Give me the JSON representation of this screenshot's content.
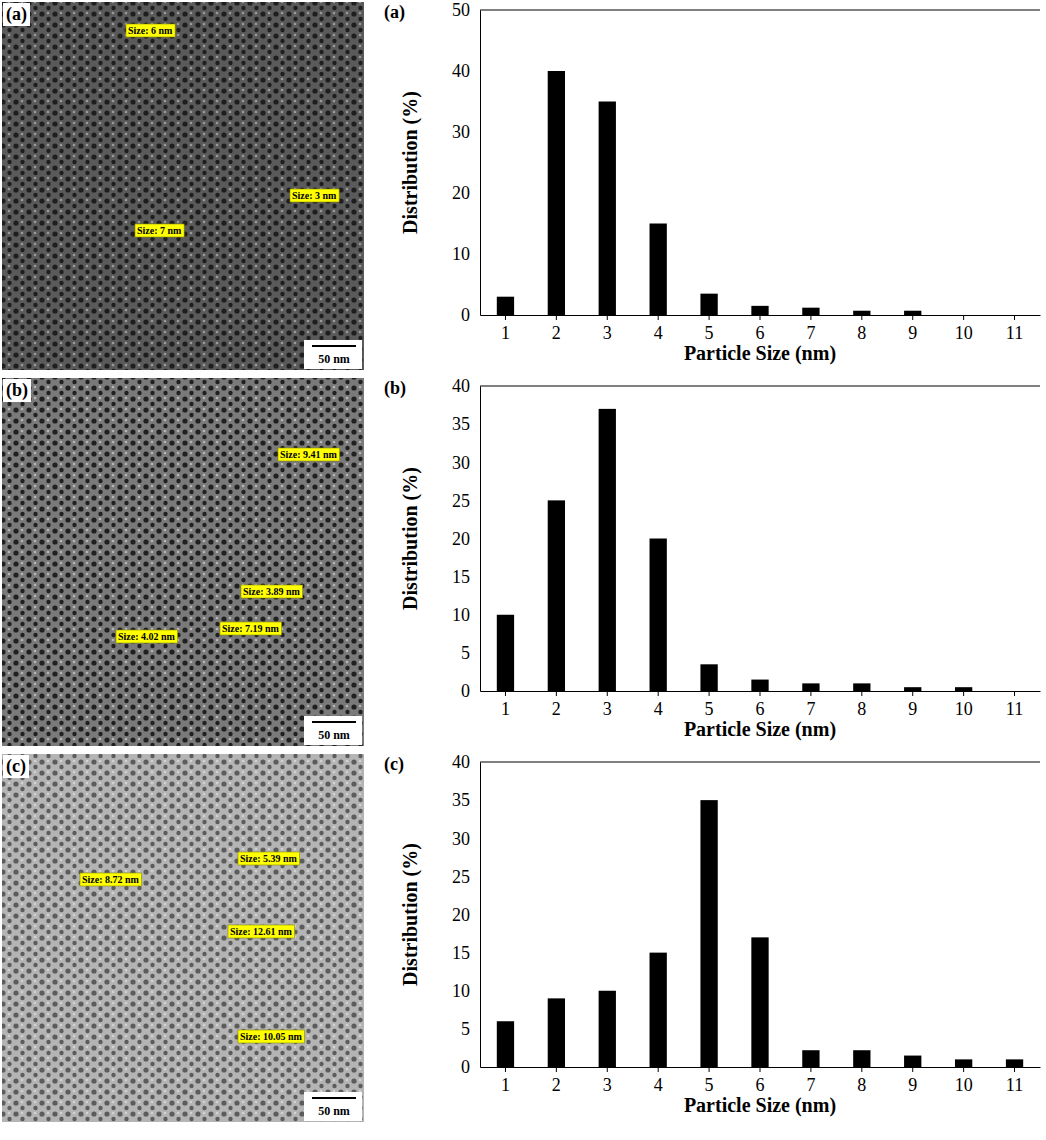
{
  "chart_data": [
    {
      "type": "bar",
      "title": "(a)",
      "xlabel": "Particle Size (nm)",
      "ylabel": "Distribution (%)",
      "categories": [
        "1",
        "2",
        "3",
        "4",
        "5",
        "6",
        "7",
        "8",
        "9",
        "10",
        "11"
      ],
      "values": [
        3,
        40,
        35,
        15,
        3.5,
        1.5,
        1.2,
        0.7,
        0.7,
        0,
        0
      ],
      "color": "#000000",
      "ylim": [
        0,
        50
      ],
      "yticks": [
        0,
        10,
        20,
        30,
        40,
        50
      ],
      "grid": false
    },
    {
      "type": "bar",
      "title": "(b)",
      "xlabel": "Particle Size (nm)",
      "ylabel": "Distribution (%)",
      "categories": [
        "1",
        "2",
        "3",
        "4",
        "5",
        "6",
        "7",
        "8",
        "9",
        "10",
        "11"
      ],
      "values": [
        10,
        25,
        37,
        20,
        3.5,
        1.5,
        1,
        1,
        0.5,
        0.5,
        0
      ],
      "color": "#000000",
      "ylim": [
        0,
        40
      ],
      "yticks": [
        0,
        5,
        10,
        15,
        20,
        25,
        30,
        35,
        40
      ],
      "grid": false
    },
    {
      "type": "bar",
      "title": "(c)",
      "xlabel": "Particle Size (nm)",
      "ylabel": "Distribution (%)",
      "categories": [
        "1",
        "2",
        "3",
        "4",
        "5",
        "6",
        "7",
        "8",
        "9",
        "10",
        "11"
      ],
      "values": [
        6,
        9,
        10,
        15,
        35,
        17,
        2.2,
        2.2,
        1.5,
        1,
        1
      ],
      "color": "#000000",
      "ylim": [
        0,
        40
      ],
      "yticks": [
        0,
        5,
        10,
        15,
        20,
        25,
        30,
        35,
        40
      ],
      "grid": false
    }
  ],
  "micrographs": [
    {
      "label": "(a)",
      "annotations": [
        "Size: 6 nm",
        "Size: 3 nm",
        "Size: 7 nm"
      ],
      "scale_bar": "50 nm"
    },
    {
      "label": "(b)",
      "annotations": [
        "Size: 9.41 nm",
        "Size: 3.89 nm",
        "Size: 4.02 nm",
        "Size: 7.19 nm"
      ],
      "scale_bar": "50 nm"
    },
    {
      "label": "(c)",
      "annotations": [
        "Size: 8.72 nm",
        "Size: 5.39 nm",
        "Size: 12.61 nm",
        "Size: 10.05 nm"
      ],
      "scale_bar": "50 nm"
    }
  ]
}
